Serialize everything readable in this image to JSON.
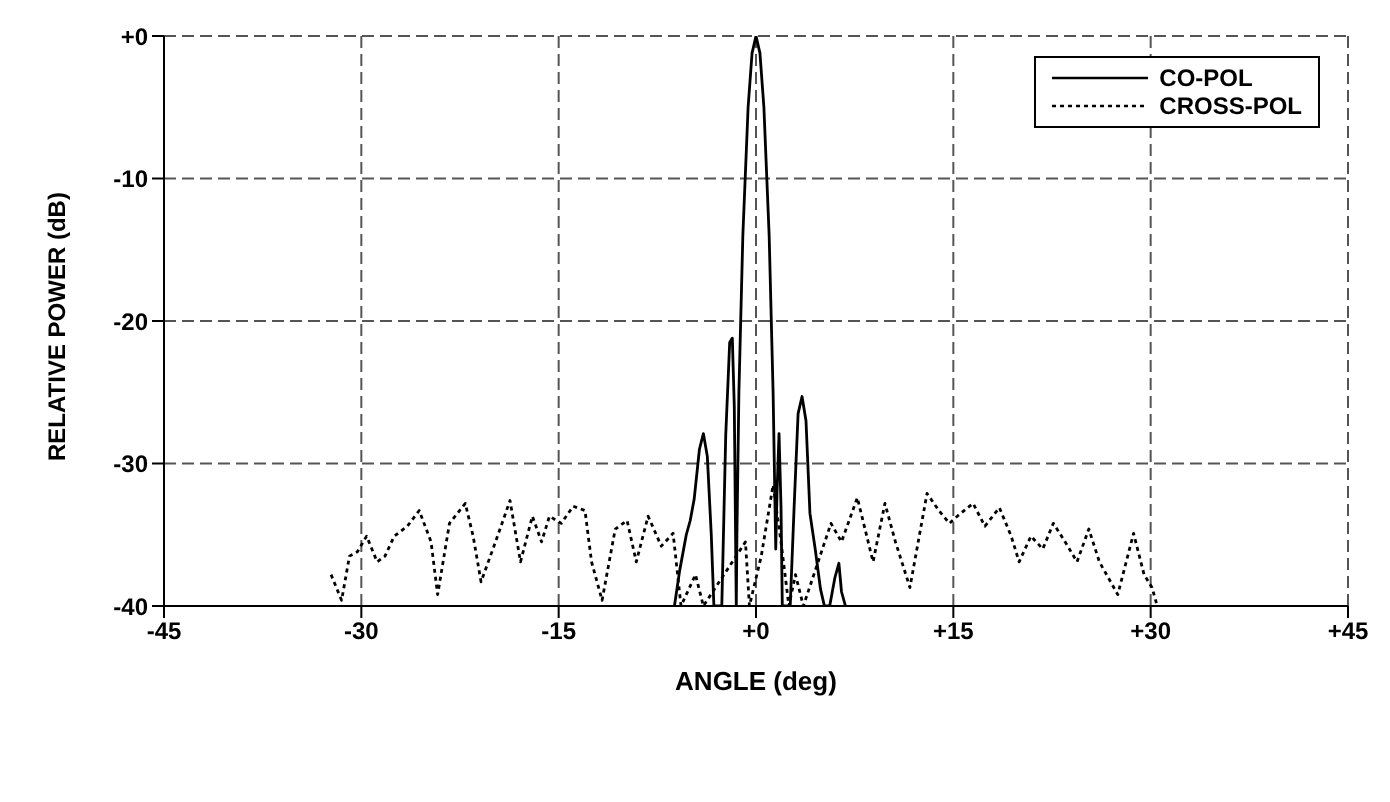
{
  "chart_data": {
    "type": "line",
    "xlabel": "ANGLE (deg)",
    "ylabel": "RELATIVE POWER (dB)",
    "xlim": [
      -45,
      45
    ],
    "xticks": [
      {
        "value": -45,
        "label": "-45"
      },
      {
        "value": -30,
        "label": "-30"
      },
      {
        "value": -15,
        "label": "-15"
      },
      {
        "value": 0,
        "label": "+0"
      },
      {
        "value": 15,
        "label": "+15"
      },
      {
        "value": 30,
        "label": "+30"
      },
      {
        "value": 45,
        "label": "+45"
      }
    ],
    "ylim": [
      -40,
      0
    ],
    "yticks": [
      {
        "value": -40,
        "label": "-40"
      },
      {
        "value": -30,
        "label": "-30"
      },
      {
        "value": -20,
        "label": "-20"
      },
      {
        "value": -10,
        "label": "-10"
      },
      {
        "value": 0,
        "label": "+0"
      }
    ],
    "grid": true,
    "legend": "top right",
    "marker": "none",
    "series": [
      {
        "name": "CO-POL",
        "color": "#000000",
        "line_style": "solid",
        "x": [
          -6.2,
          -5.8,
          -5.3,
          -5.0,
          -4.7,
          -4.3,
          -4.0,
          -3.7,
          -3.4,
          -3.2,
          -2.6,
          -2.3,
          -2.0,
          -1.8,
          -1.65,
          -1.5,
          -1.45,
          -1.3,
          -1.0,
          -0.6,
          -0.3,
          0,
          0.3,
          0.6,
          1.0,
          1.3,
          1.5,
          1.6,
          1.75,
          1.9,
          2.0,
          2.6,
          2.9,
          3.2,
          3.5,
          3.8,
          4.1,
          4.5,
          4.9,
          5.2,
          5.6,
          6.0,
          6.3,
          6.5,
          6.8
        ],
        "values": [
          -40,
          -37.5,
          -35,
          -34,
          -32.5,
          -29,
          -27.9,
          -29.5,
          -35,
          -40,
          -40,
          -28,
          -21.5,
          -21.2,
          -26,
          -40,
          -35,
          -25,
          -14,
          -5,
          -1.2,
          0,
          -1.2,
          -5,
          -14,
          -25,
          -36,
          -32,
          -27.9,
          -33,
          -40,
          -40,
          -33,
          -26.5,
          -25.3,
          -27,
          -33.5,
          -36,
          -38.8,
          -40,
          -40,
          -38,
          -37,
          -39,
          -40
        ]
      },
      {
        "name": "CROSS-POL",
        "color": "#000000",
        "line_style": "dotted",
        "x": [
          -32.3,
          -31.5,
          -30.9,
          -30.3,
          -29.6,
          -28.8,
          -28.2,
          -27.5,
          -26.5,
          -25.6,
          -24.7,
          -24.2,
          -23.3,
          -22.1,
          -21.5,
          -20.9,
          -19.8,
          -18.7,
          -17.9,
          -17,
          -16.3,
          -15.7,
          -14.8,
          -13.9,
          -13,
          -12.5,
          -11.7,
          -10.7,
          -9.8,
          -9.1,
          -8.2,
          -7.2,
          -6.3,
          -5.7,
          -4.6,
          -4,
          -0.8,
          -0.5,
          0.4,
          1.3,
          1.9,
          2.5,
          3,
          3.6,
          5.7,
          6.5,
          7.7,
          8.9,
          9.8,
          10.6,
          11.7,
          13,
          13.9,
          14.7,
          15.3,
          16.5,
          17.4,
          18.5,
          19.4,
          20,
          20.9,
          21.8,
          22.6,
          23.5,
          24.4,
          25.3,
          26.1,
          27.5,
          28.7,
          29.5,
          30.1,
          30.5
        ],
        "values": [
          -37.8,
          -39.6,
          -36.5,
          -36.2,
          -35.1,
          -36.9,
          -36.5,
          -35.1,
          -34.4,
          -33.3,
          -35.5,
          -39.2,
          -34.2,
          -32.8,
          -35.1,
          -38.3,
          -35.5,
          -32.6,
          -36.9,
          -33.7,
          -35.5,
          -33.7,
          -34.2,
          -33,
          -33.3,
          -36.9,
          -39.6,
          -34.6,
          -34,
          -36.9,
          -33.7,
          -35.8,
          -34.9,
          -40,
          -37.8,
          -40,
          -35.5,
          -40,
          -36.5,
          -31.5,
          -35.5,
          -40,
          -37.8,
          -40,
          -34.2,
          -35.5,
          -32.4,
          -36.9,
          -32.8,
          -35.5,
          -38.7,
          -32.1,
          -33.3,
          -34.2,
          -33.7,
          -32.8,
          -34.4,
          -33.1,
          -35.1,
          -36.9,
          -35.1,
          -36,
          -34.2,
          -35.5,
          -36.9,
          -34.6,
          -36.9,
          -39.2,
          -34.9,
          -37.8,
          -38.7,
          -40
        ]
      }
    ]
  }
}
